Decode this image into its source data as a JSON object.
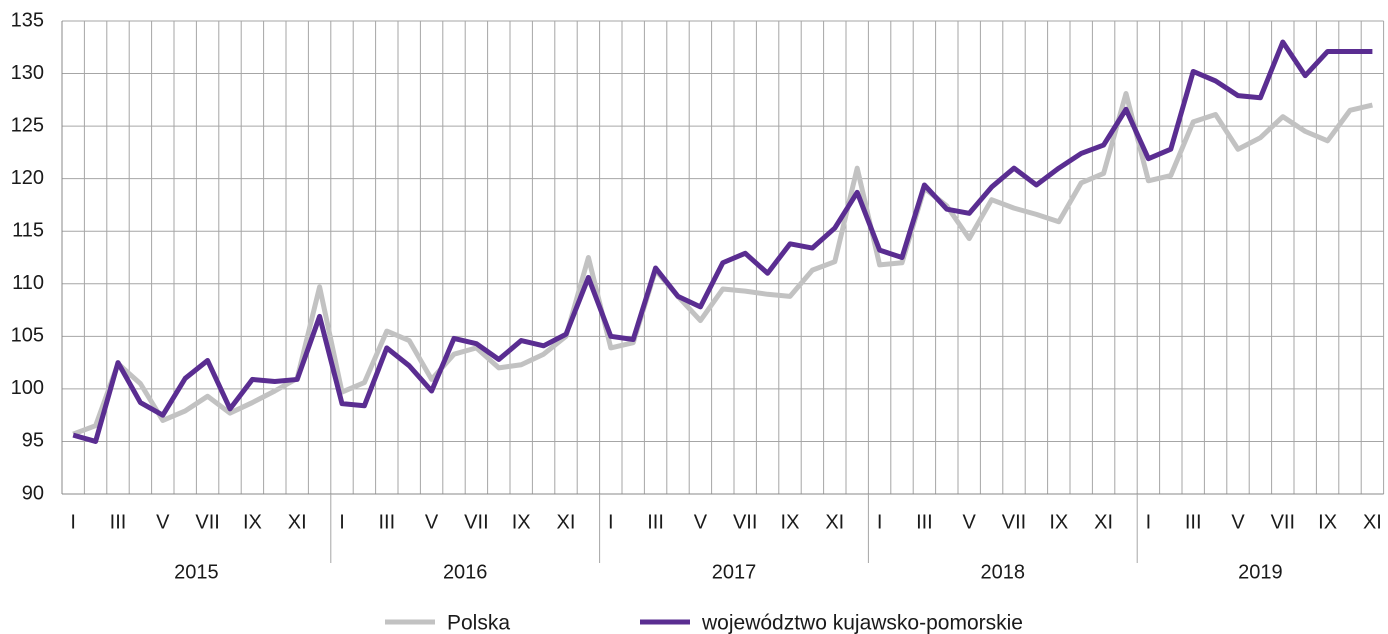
{
  "chart_data": {
    "type": "line",
    "categories": [
      "I",
      null,
      "III",
      null,
      "V",
      null,
      "VII",
      null,
      "IX",
      null,
      "XI",
      null,
      "I",
      null,
      "III",
      null,
      "V",
      null,
      "VII",
      null,
      "IX",
      null,
      "XI",
      null,
      "I",
      null,
      "III",
      null,
      "V",
      null,
      "VII",
      null,
      "IX",
      null,
      "XI",
      null,
      "I",
      null,
      "III",
      null,
      "V",
      null,
      "VII",
      null,
      "IX",
      null,
      "XI",
      null,
      "I",
      null,
      "III",
      null,
      "V",
      null,
      "VII",
      null,
      "IX",
      null,
      "XI"
    ],
    "years": [
      "2015",
      "2016",
      "2017",
      "2018",
      "2019"
    ],
    "series": [
      {
        "name": "Polska",
        "color": "#c2c2c2",
        "values": [
          95.7,
          96.5,
          102.4,
          100.5,
          97.0,
          97.9,
          99.3,
          97.7,
          98.7,
          99.8,
          101.0,
          109.7,
          99.7,
          100.6,
          105.5,
          104.6,
          100.9,
          103.3,
          103.9,
          102.0,
          102.3,
          103.3,
          105.0,
          112.5,
          103.9,
          104.4,
          111.3,
          108.8,
          106.5,
          109.5,
          109.3,
          109.0,
          108.8,
          111.3,
          112.1,
          121.0,
          111.8,
          112.0,
          119.1,
          117.4,
          114.3,
          118.0,
          117.2,
          116.6,
          115.9,
          119.6,
          120.5,
          128.1,
          119.8,
          120.3,
          125.4,
          126.1,
          122.8,
          123.9,
          125.9,
          124.5,
          123.6,
          126.5,
          127.0
        ]
      },
      {
        "name": "województwo kujawsko-pomorskie",
        "color": "#5a2d91",
        "values": [
          95.6,
          95.0,
          102.5,
          98.7,
          97.5,
          101.0,
          102.7,
          98.1,
          100.9,
          100.7,
          100.9,
          106.9,
          98.6,
          98.4,
          103.9,
          102.2,
          99.8,
          104.8,
          104.3,
          102.8,
          104.6,
          104.1,
          105.2,
          110.6,
          105.0,
          104.7,
          111.5,
          108.8,
          107.8,
          112.0,
          112.9,
          111.0,
          113.8,
          113.4,
          115.3,
          118.7,
          113.2,
          112.5,
          119.4,
          117.1,
          116.7,
          119.2,
          121.0,
          119.4,
          121.0,
          122.4,
          123.2,
          126.6,
          121.9,
          122.8,
          130.2,
          129.3,
          127.9,
          127.7,
          133.0,
          129.8,
          132.1,
          132.1,
          132.1
        ]
      }
    ],
    "ylim": [
      90,
      135
    ],
    "yticks": [
      90,
      95,
      100,
      105,
      110,
      115,
      120,
      125,
      130,
      135
    ],
    "grid": true
  }
}
